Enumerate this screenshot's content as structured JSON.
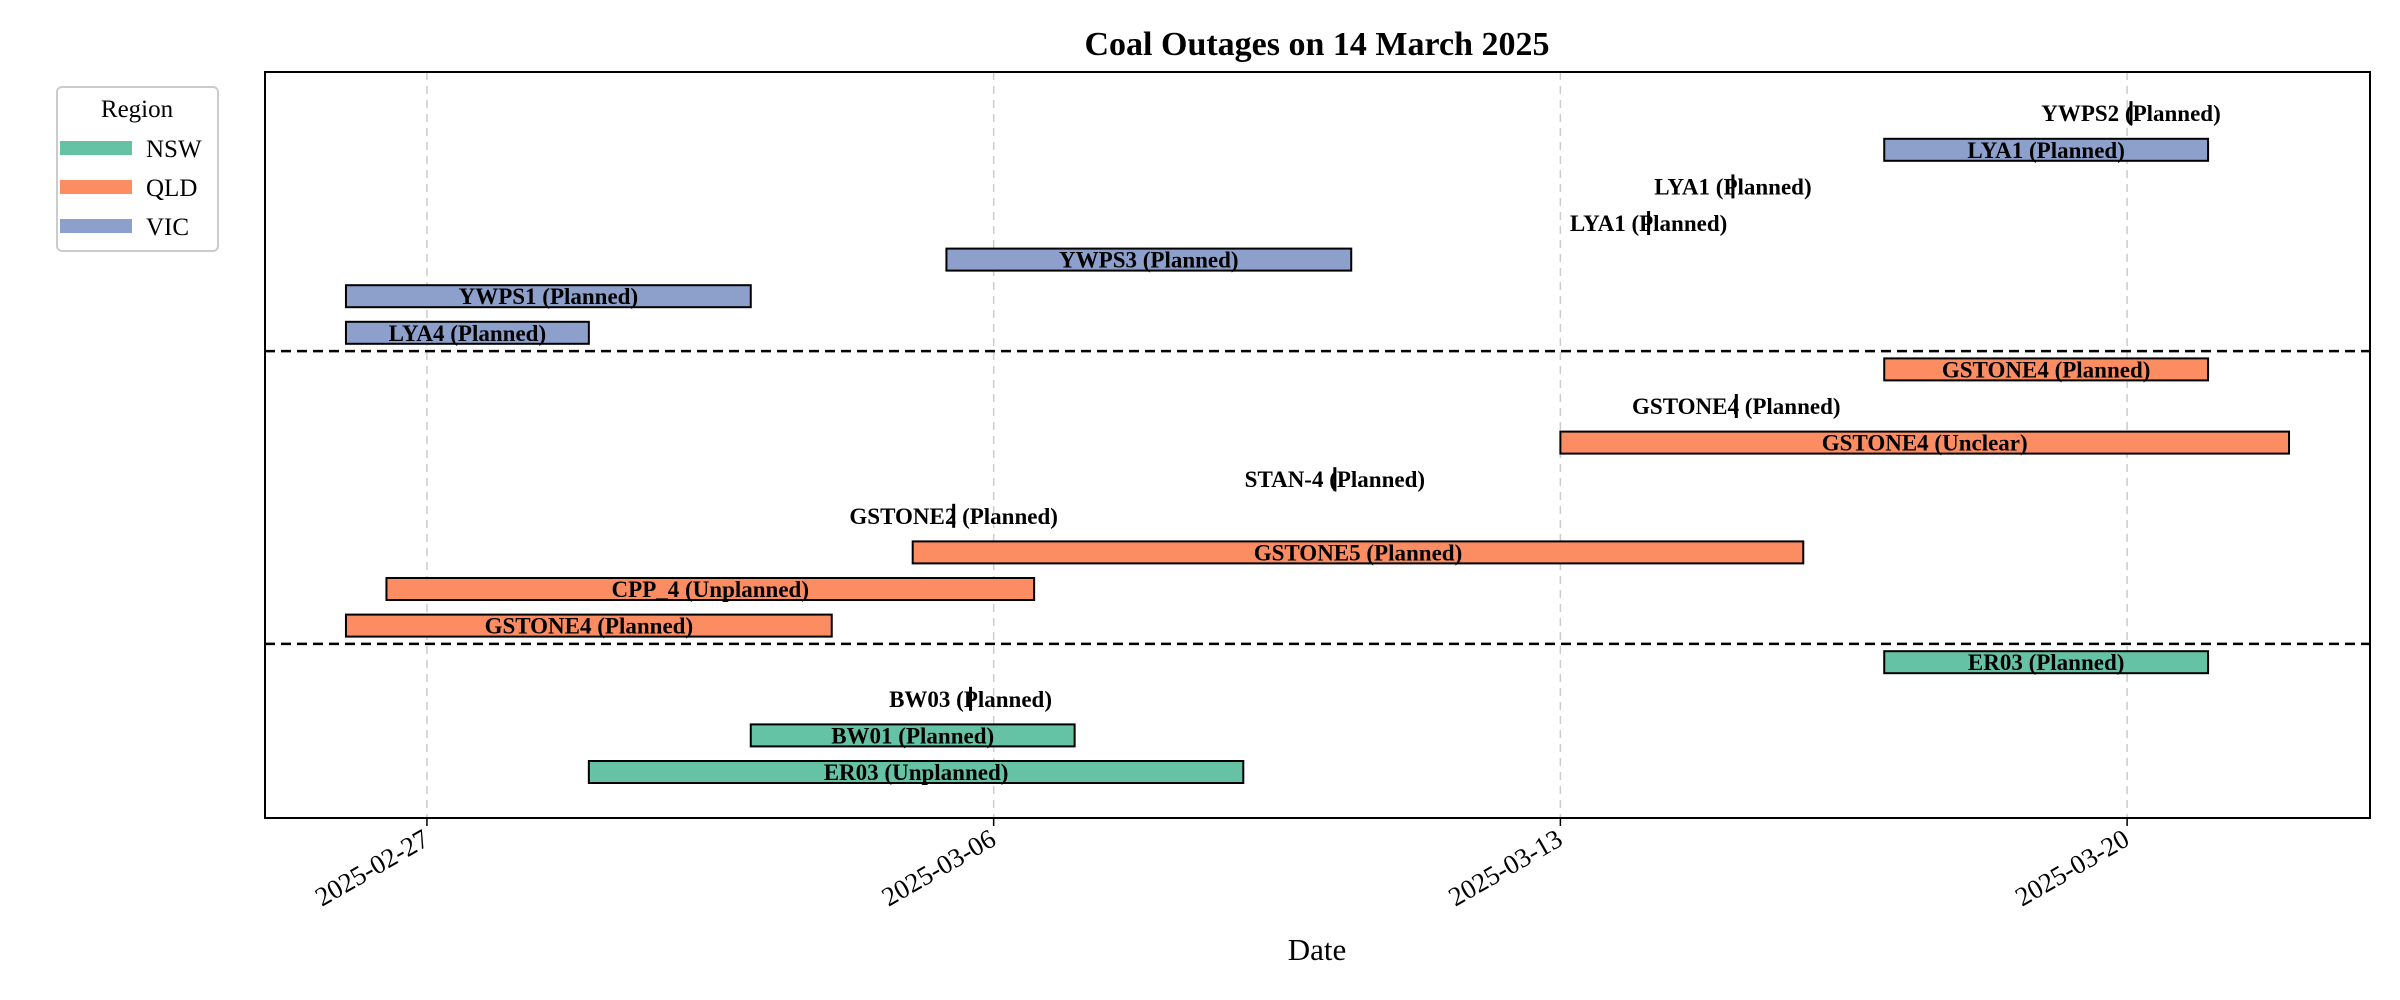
{
  "chart_data": {
    "type": "gantt",
    "title": "Coal Outages on 14 March 2025",
    "xlabel": "Date",
    "ylabel": "",
    "xlim": [
      "2025-02-25",
      "2025-03-23"
    ],
    "x_ticks": [
      "2025-02-27",
      "2025-03-06",
      "2025-03-13",
      "2025-03-20"
    ],
    "grid": "vertical dashed",
    "legend": {
      "title": "Region",
      "placement": "upper-left outside",
      "entries": [
        {
          "label": "NSW",
          "color": "#66c2a5"
        },
        {
          "label": "QLD",
          "color": "#fc8d62"
        },
        {
          "label": "VIC",
          "color": "#8da0cb"
        }
      ]
    },
    "region_dividers_between": [
      [
        "NSW",
        "QLD"
      ],
      [
        "QLD",
        "VIC"
      ]
    ],
    "tasks": [
      {
        "label": "ER03 (Unplanned)",
        "region": "NSW",
        "start": "2025-03-01",
        "end": "2025-03-09 02:00"
      },
      {
        "label": "BW01 (Planned)",
        "region": "NSW",
        "start": "2025-03-03",
        "end": "2025-03-07"
      },
      {
        "label": "BW03 (Planned)",
        "region": "NSW",
        "start": "2025-03-05 17:00",
        "end": "2025-03-05 17:00"
      },
      {
        "label": "ER03 (Planned)",
        "region": "NSW",
        "start": "2025-03-17",
        "end": "2025-03-21"
      },
      {
        "label": "GSTONE4 (Planned)",
        "region": "QLD",
        "start": "2025-02-26",
        "end": "2025-03-04"
      },
      {
        "label": "CPP_4 (Unplanned)",
        "region": "QLD",
        "start": "2025-02-26 12:00",
        "end": "2025-03-06 12:00"
      },
      {
        "label": "GSTONE5 (Planned)",
        "region": "QLD",
        "start": "2025-03-05",
        "end": "2025-03-16"
      },
      {
        "label": "GSTONE2 (Planned)",
        "region": "QLD",
        "start": "2025-03-05 12:00",
        "end": "2025-03-05 12:00"
      },
      {
        "label": "STAN-4 (Planned)",
        "region": "QLD",
        "start": "2025-03-10 05:00",
        "end": "2025-03-10 05:00"
      },
      {
        "label": "GSTONE4 (Unclear)",
        "region": "QLD",
        "start": "2025-03-13",
        "end": "2025-03-22"
      },
      {
        "label": "GSTONE4 (Planned)",
        "region": "QLD",
        "start": "2025-03-15 04:00",
        "end": "2025-03-15 04:00"
      },
      {
        "label": "GSTONE4 (Planned)",
        "region": "QLD",
        "start": "2025-03-17",
        "end": "2025-03-21"
      },
      {
        "label": "LYA4 (Planned)",
        "region": "VIC",
        "start": "2025-02-26",
        "end": "2025-03-01"
      },
      {
        "label": "YWPS1 (Planned)",
        "region": "VIC",
        "start": "2025-02-26",
        "end": "2025-03-03"
      },
      {
        "label": "YWPS3 (Planned)",
        "region": "VIC",
        "start": "2025-03-05 10:00",
        "end": "2025-03-10 10:00"
      },
      {
        "label": "LYA1 (Planned)",
        "region": "VIC",
        "start": "2025-03-14 02:00",
        "end": "2025-03-14 02:00"
      },
      {
        "label": "LYA1 (Planned)",
        "region": "VIC",
        "start": "2025-03-15 03:00",
        "end": "2025-03-15 03:00"
      },
      {
        "label": "LYA1 (Planned)",
        "region": "VIC",
        "start": "2025-03-17",
        "end": "2025-03-21"
      },
      {
        "label": "YWPS2 (Planned)",
        "region": "VIC",
        "start": "2025-03-20 01:00",
        "end": "2025-03-20 01:00"
      }
    ]
  }
}
